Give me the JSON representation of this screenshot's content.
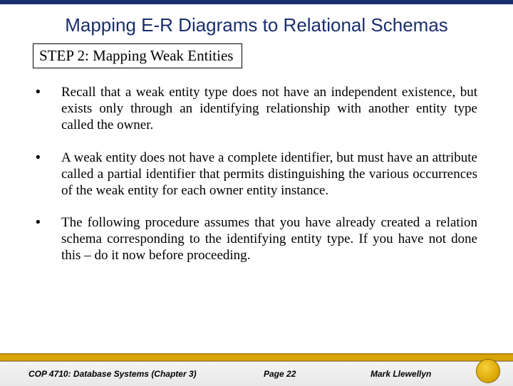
{
  "colors": {
    "title_color": "#1a2e6e",
    "top_bar": "#1a2e6e",
    "accent_bar": "#d8a400",
    "footer_bg_top": "#f4f4f4",
    "footer_bg_bottom": "#e8e8e8",
    "text": "#000000"
  },
  "title": "Mapping E-R Diagrams to Relational Schemas",
  "step_box": "STEP 2:  Mapping Weak Entities",
  "bullets": [
    "Recall that a weak entity type does not have an independent existence, but exists only through an identifying relationship with another entity type called the owner.",
    "A weak entity does not have a complete identifier, but must have an attribute called a partial identifier that permits distinguishing the various occurrences of the weak entity for each owner entity instance.",
    "The following procedure assumes that you have already created a relation schema corresponding to the identifying entity type.  If you have not done this – do it now before proceeding."
  ],
  "footer": {
    "course": "COP 4710: Database Systems  (Chapter 3)",
    "page": "Page 22",
    "author": "Mark Llewellyn"
  }
}
